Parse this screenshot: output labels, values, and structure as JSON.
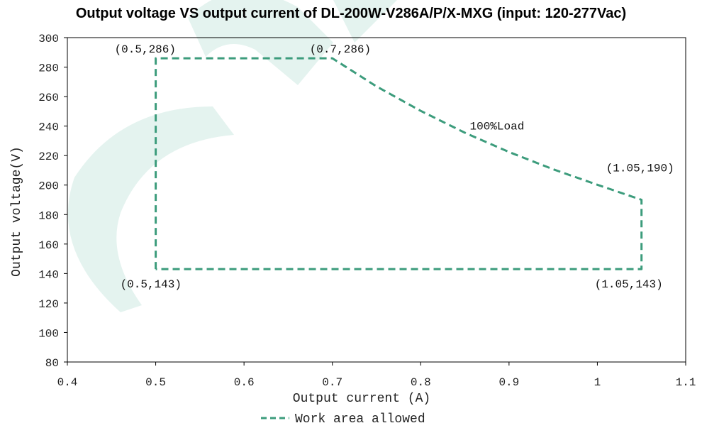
{
  "chart_data": {
    "type": "line",
    "title": "Output voltage VS output current of DL-200W-V286A/P/X-MXG (input: 120-277Vac)",
    "xlabel": "Output current (A)",
    "ylabel": "Output voltage(V)",
    "xlim": [
      0.4,
      1.1
    ],
    "ylim": [
      80,
      300
    ],
    "x_ticks": [
      0.4,
      0.5,
      0.6,
      0.7,
      0.8,
      0.9,
      1,
      1.1
    ],
    "x_tick_labels": [
      "0.4",
      "0.5",
      "0.6",
      "0.7",
      "0.8",
      "0.9",
      "1",
      "1.1"
    ],
    "y_ticks": [
      80,
      100,
      120,
      140,
      160,
      180,
      200,
      220,
      240,
      260,
      280,
      300
    ],
    "y_tick_labels": [
      "80",
      "100",
      "120",
      "140",
      "160",
      "180",
      "200",
      "220",
      "240",
      "260",
      "280",
      "300"
    ],
    "grid": false,
    "legend_position": "bottom",
    "series": [
      {
        "name": "Work area allowed",
        "style": "dashed",
        "color": "#3c9c7c",
        "points": [
          [
            0.5,
            143
          ],
          [
            0.5,
            286
          ],
          [
            0.7,
            286
          ],
          [
            0.75,
            266.9
          ],
          [
            0.8,
            250.3
          ],
          [
            0.85,
            235.5
          ],
          [
            0.9,
            222.4
          ],
          [
            0.95,
            210.7
          ],
          [
            1.0,
            200.2
          ],
          [
            1.05,
            190
          ],
          [
            1.05,
            143
          ],
          [
            0.5,
            143
          ]
        ]
      }
    ],
    "annotations": [
      {
        "text": "(0.5,286)",
        "x": 0.5,
        "y": 286
      },
      {
        "text": "(0.7,286)",
        "x": 0.7,
        "y": 286
      },
      {
        "text": "100%Load",
        "x": 0.87,
        "y": 240
      },
      {
        "text": "(1.05,190)",
        "x": 1.05,
        "y": 190
      },
      {
        "text": "(0.5,143)",
        "x": 0.5,
        "y": 143
      },
      {
        "text": "(1.05,143)",
        "x": 1.05,
        "y": 143
      }
    ]
  }
}
